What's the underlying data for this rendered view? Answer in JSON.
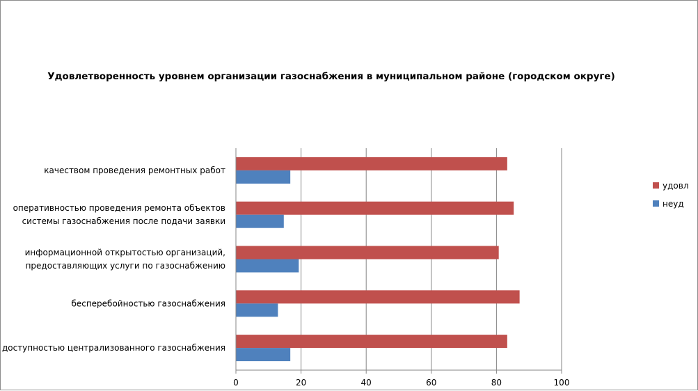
{
  "chart_data": {
    "type": "bar",
    "orientation": "horizontal",
    "title": "Удовлетворенность уровнем организации газоснабжения в муниципальном районе (городском округе)",
    "categories": [
      [
        "качеством  проведения  ремонтных работ"
      ],
      [
        "оперативностью проведения ремонта объектов",
        "системы газоснабжения после подачи заявки"
      ],
      [
        "информационной открытостью организаций,",
        "предоставляющих услуги по газоснабжению"
      ],
      [
        "бесперебойностью  газоснабжения"
      ],
      [
        "доступностью централизованного газоснабжения"
      ]
    ],
    "series": [
      {
        "name": "удовл",
        "color": "#c0504d",
        "values": [
          83.3,
          85.3,
          80.7,
          87.1,
          83.3
        ]
      },
      {
        "name": "неуд",
        "color": "#4f81bd",
        "values": [
          16.7,
          14.7,
          19.3,
          12.9,
          16.7
        ]
      }
    ],
    "xlim": [
      0,
      100
    ],
    "xticks": [
      0,
      20,
      40,
      60,
      80,
      100
    ],
    "grid": true,
    "legend_position": "right"
  }
}
